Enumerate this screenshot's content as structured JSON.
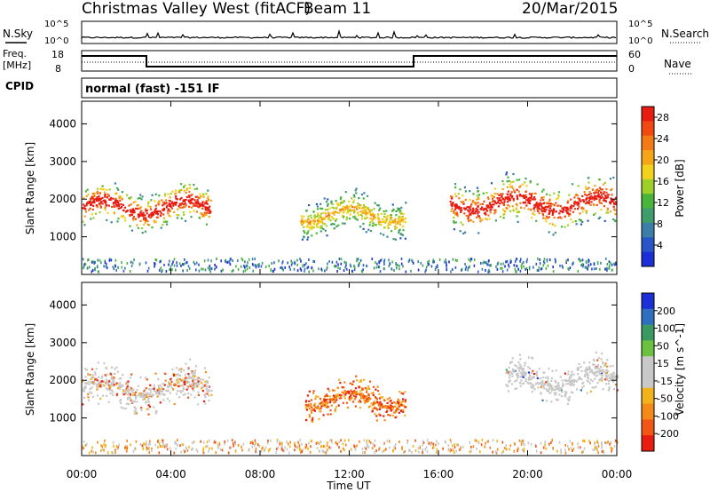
{
  "header": {
    "station": "Christmas Valley West (fitACF)",
    "beam": "Beam 11",
    "date": "20/Mar/2015"
  },
  "top_panels": {
    "nsky_label": "N.Sky",
    "nsky_ticks": [
      "10^5",
      "10^0"
    ],
    "nsearch_label": "N.Search",
    "freq_label_line1": "Freq.",
    "freq_label_line2": "[MHz]",
    "freq_ticks": [
      "18",
      "8"
    ],
    "nave_ticks": [
      "60",
      "0"
    ],
    "nave_label": "Nave",
    "cpid_label": "CPID",
    "cpid_text": "normal (fast) -151 IF"
  },
  "colors": {
    "power_scale": [
      "#1a2fd6",
      "#2a55c8",
      "#3b7fa8",
      "#3f9c6b",
      "#49b43a",
      "#9fd02a",
      "#f2d21c",
      "#f5a618",
      "#f47a16",
      "#f04a12",
      "#e81c10"
    ],
    "velocity_scale": [
      "#1a2fd6",
      "#2e6fc0",
      "#3b9a63",
      "#6cc140",
      "#c8c8c8",
      "#c8c8c8",
      "#f2b21c",
      "#f58a18",
      "#f25614",
      "#e81c10"
    ]
  },
  "chart_data": [
    {
      "type": "heatmap",
      "ylabel": "Slant Range [km]",
      "yticks": [
        "1000",
        "2000",
        "3000",
        "4000"
      ],
      "ylim": [
        0,
        4600
      ],
      "colorbar_label": "Power [dB]",
      "colorbar_ticks": [
        "4",
        "8",
        "12",
        "16",
        "20",
        "24",
        "28"
      ],
      "colorbar_range": [
        0,
        30
      ],
      "regions": [
        {
          "t_start": 0.0,
          "t_end": 5.8,
          "r_min": 1200,
          "r_max": 2400,
          "level": "high"
        },
        {
          "t_start": 9.8,
          "t_end": 14.5,
          "r_min": 1000,
          "r_max": 2200,
          "level": "medium"
        },
        {
          "t_start": 16.5,
          "t_end": 24.0,
          "r_min": 1200,
          "r_max": 2600,
          "level": "high"
        }
      ]
    },
    {
      "type": "heatmap",
      "ylabel": "Slant Range [km]",
      "yticks": [
        "1000",
        "2000",
        "3000",
        "4000"
      ],
      "ylim": [
        0,
        4600
      ],
      "colorbar_label": "Velocity [m s^-1]",
      "colorbar_ticks": [
        "200",
        "100",
        "50",
        "15",
        "-15",
        "-50",
        "-100",
        "-200"
      ],
      "colorbar_range": [
        -250,
        250
      ],
      "regions": [
        {
          "t_start": 0.0,
          "t_end": 5.8,
          "r_min": 1200,
          "r_max": 2400,
          "level": "mixed"
        },
        {
          "t_start": 10.0,
          "t_end": 14.5,
          "r_min": 1000,
          "r_max": 2000,
          "level": "negative"
        },
        {
          "t_start": 19.0,
          "t_end": 24.0,
          "r_min": 1500,
          "r_max": 2600,
          "level": "near-zero"
        }
      ]
    }
  ],
  "xaxis": {
    "label": "Time UT",
    "ticks": [
      "00:00",
      "04:00",
      "08:00",
      "12:00",
      "16:00",
      "20:00",
      "00:00"
    ]
  }
}
